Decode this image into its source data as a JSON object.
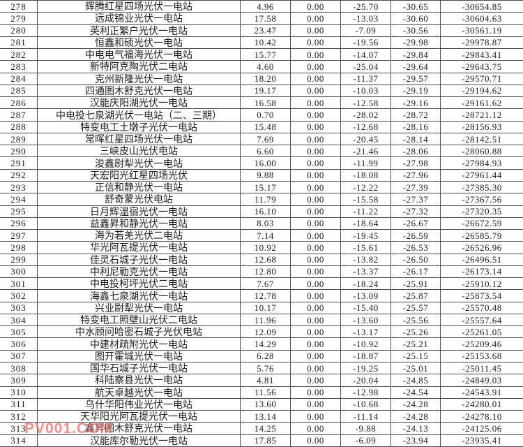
{
  "watermark": {
    "text": "PV001.COM",
    "color": "#f4695d"
  },
  "table": {
    "cell_names": [
      "row-number-cell",
      "station-name-cell",
      "value-col1-cell",
      "value-col2-cell",
      "value-col3-cell",
      "value-col4-cell",
      "value-col5-cell"
    ],
    "rows": [
      [
        "278",
        "辉腾红星四场光伏一电站",
        "4.96",
        "0.00",
        "-25.70",
        "-30.65",
        "-30654.85"
      ],
      [
        "279",
        "远成锦业光伏一电站",
        "17.58",
        "0.00",
        "-13.03",
        "-30.60",
        "-30604.63"
      ],
      [
        "280",
        "英利正繁户光伏一电站",
        "23.47",
        "0.00",
        "-7.09",
        "-30.56",
        "-30561.19"
      ],
      [
        "281",
        "恒鑫和硕光伏一电站",
        "10.42",
        "0.00",
        "-19.56",
        "-29.98",
        "-29978.87"
      ],
      [
        "282",
        "中电电气福海光伏一电站",
        "15.77",
        "0.00",
        "-14.07",
        "-29.84",
        "-29843.41"
      ],
      [
        "283",
        "新特阿克陶光伏二电站",
        "4.60",
        "0.00",
        "-25.04",
        "-29.64",
        "-29643.75"
      ],
      [
        "284",
        "克州新隆光伏一电站",
        "18.20",
        "0.00",
        "-11.37",
        "-29.57",
        "-29570.71"
      ],
      [
        "285",
        "四通图木舒克光伏一电站",
        "19.17",
        "0.00",
        "-10.03",
        "-29.19",
        "-29194.62"
      ],
      [
        "286",
        "汉能庆阳湖光伏一电站",
        "16.58",
        "0.00",
        "-12.58",
        "-29.16",
        "-29161.62"
      ],
      [
        "287",
        "中电投七泉湖光伏一电站（二、三期）",
        "0.70",
        "0.00",
        "-28.02",
        "-28.72",
        "-28721.12"
      ],
      [
        "288",
        "特变电工土墩子光伏一电站",
        "15.48",
        "0.00",
        "-12.68",
        "-28.16",
        "-28156.93"
      ],
      [
        "289",
        "常晖红星四场光伏一电站",
        "7.69",
        "0.00",
        "-20.45",
        "-28.14",
        "-28142.51"
      ],
      [
        "290",
        "三峡皮山光伏电站",
        "6.60",
        "0.00",
        "-21.46",
        "-28.06",
        "-28060.88"
      ],
      [
        "291",
        "浚鑫尉犁光伏一电站",
        "16.00",
        "0.00",
        "-11.99",
        "-27.98",
        "-27984.93"
      ],
      [
        "292",
        "天宏阳光红星四场光伏",
        "9.88",
        "0.00",
        "-18.08",
        "-27.96",
        "-27961.44"
      ],
      [
        "293",
        "正信和静光伏一电站",
        "15.17",
        "0.00",
        "-12.22",
        "-27.39",
        "-27385.30"
      ],
      [
        "294",
        "舒奇蒙光伏电站",
        "11.79",
        "0.00",
        "-15.58",
        "-27.37",
        "-27367.56"
      ],
      [
        "295",
        "日月辉温宿光伏一电站",
        "16.10",
        "0.00",
        "-11.22",
        "-27.32",
        "-27320.35"
      ],
      [
        "296",
        "益鑫昇和静光伏一电站",
        "8.03",
        "0.00",
        "-18.64",
        "-26.67",
        "-26672.59"
      ],
      [
        "297",
        "海为若羌光伏二电站",
        "7.14",
        "0.00",
        "-19.45",
        "-26.59",
        "-26585.79"
      ],
      [
        "298",
        "华光阿瓦提光伏一电站",
        "10.92",
        "0.00",
        "-15.61",
        "-26.53",
        "-26526.96"
      ],
      [
        "299",
        "佳灵石城子光伏一电站",
        "12.68",
        "0.00",
        "-13.82",
        "-26.50",
        "-26496.51"
      ],
      [
        "300",
        "中利尼勒克光伏一电站",
        "12.80",
        "0.00",
        "-13.37",
        "-26.17",
        "-26173.14"
      ],
      [
        "301",
        "中电投柯坪光伏二电站",
        "7.67",
        "0.00",
        "-18.24",
        "-25.91",
        "-25910.12"
      ],
      [
        "302",
        "海鑫七泉湖光伏一电站",
        "12.78",
        "0.00",
        "-13.09",
        "-25.87",
        "-25873.54"
      ],
      [
        "303",
        "兴业尉犁光伏一电站",
        "10.17",
        "0.00",
        "-15.40",
        "-25.57",
        "-25570.48"
      ],
      [
        "304",
        "特变电工照壁山光伏二电站",
        "11.96",
        "0.00",
        "-13.60",
        "-25.56",
        "-25557.64"
      ],
      [
        "305",
        "中水顾问哈密石城子光伏电站",
        "12.09",
        "0.00",
        "-13.17",
        "-25.26",
        "-25261.05"
      ],
      [
        "306",
        "中建材疏附光伏一电站",
        "14.29",
        "0.00",
        "-10.92",
        "-25.21",
        "-25209.46"
      ],
      [
        "307",
        "图开霍城光伏一电站",
        "6.28",
        "0.00",
        "-18.87",
        "-25.15",
        "-25153.68"
      ],
      [
        "308",
        "国华石城子光伏一电站",
        "5.76",
        "0.00",
        "-19.25",
        "-25.01",
        "-25011.45"
      ],
      [
        "309",
        "科陆察县光伏一电站",
        "4.81",
        "0.00",
        "-20.04",
        "-24.85",
        "-24849.03"
      ],
      [
        "310",
        "航天卓越光伏一电站",
        "11.56",
        "0.00",
        "-12.98",
        "-24.54",
        "-24543.91"
      ],
      [
        "311",
        "乌什华阳伟业光伏一电站",
        "13.60",
        "0.00",
        "-10.68",
        "-24.28",
        "-24280.01"
      ],
      [
        "312",
        "天华阳光阿瓦提光伏一电站",
        "13.14",
        "0.00",
        "-11.14",
        "-24.28",
        "-24278.10"
      ],
      [
        "313",
        "鑫昇图木舒克光伏一电站",
        "14.25",
        "0.00",
        "-9.88",
        "-24.13",
        "-24125.06"
      ],
      [
        "314",
        "汉能库尔勒光伏一电站",
        "17.85",
        "0.00",
        "-6.09",
        "-23.94",
        "-23935.41"
      ]
    ]
  }
}
